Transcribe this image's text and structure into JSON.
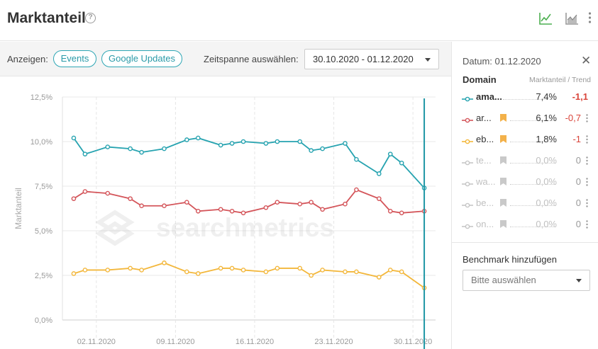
{
  "header": {
    "title": "Marktanteil",
    "help_glyph": "?",
    "icons": [
      "line-chart-icon",
      "area-chart-icon",
      "kebab-menu-icon"
    ]
  },
  "toolbar": {
    "show_label": "Anzeigen:",
    "events_label": "Events",
    "google_updates_label": "Google Updates",
    "timespan_label": "Zeitspanne auswählen:",
    "timespan_value": "30.10.2020 - 01.12.2020"
  },
  "colors": {
    "teal": "#26a3b0",
    "red": "#d4555a",
    "yellow": "#f3b73b",
    "gray": "#c6c6c6",
    "accent_green": "#4caf50",
    "bookmark": "#f3b14a"
  },
  "watermark": "searchmetrics",
  "panel": {
    "date_label": "Datum: 01.12.2020",
    "close_glyph": "✕",
    "domain_header": "Domain",
    "trend_header": "Marktanteil / Trend",
    "rows": [
      {
        "name": "ama...",
        "share": "7,4%",
        "trend": "-1,1",
        "color": "#26a3b0",
        "active": true,
        "bookmark": false,
        "bold": true
      },
      {
        "name": "ar...",
        "share": "6,1%",
        "trend": "-0,7",
        "color": "#d4555a",
        "active": true,
        "bookmark": true,
        "bold": false
      },
      {
        "name": "eb...",
        "share": "1,8%",
        "trend": "-1",
        "color": "#f3b73b",
        "active": true,
        "bookmark": true,
        "bold": false
      },
      {
        "name": "te...",
        "share": "0,0%",
        "trend": "0",
        "color": "#c6c6c6",
        "active": false,
        "bookmark": true,
        "bold": false
      },
      {
        "name": "wa...",
        "share": "0,0%",
        "trend": "0",
        "color": "#c6c6c6",
        "active": false,
        "bookmark": true,
        "bold": false
      },
      {
        "name": "be...",
        "share": "0,0%",
        "trend": "0",
        "color": "#c6c6c6",
        "active": false,
        "bookmark": true,
        "bold": false
      },
      {
        "name": "on...",
        "share": "0,0%",
        "trend": "0",
        "color": "#c6c6c6",
        "active": false,
        "bookmark": true,
        "bold": false
      }
    ],
    "benchmark_label": "Benchmark hinzufügen",
    "benchmark_placeholder": "Bitte auswählen"
  },
  "chart_data": {
    "type": "line",
    "ylabel": "Marktanteil",
    "ylim": [
      0,
      12.5
    ],
    "yticks": [
      0,
      2.5,
      5,
      7.5,
      10,
      12.5
    ],
    "ytick_labels": [
      "0,0%",
      "2,5%",
      "5,0%",
      "7,5%",
      "10,0%",
      "12,5%"
    ],
    "x": [
      "31.10.2020",
      "01.11.2020",
      "03.11.2020",
      "05.11.2020",
      "06.11.2020",
      "08.11.2020",
      "10.11.2020",
      "11.11.2020",
      "13.11.2020",
      "14.11.2020",
      "15.11.2020",
      "17.11.2020",
      "18.11.2020",
      "20.11.2020",
      "21.11.2020",
      "22.11.2020",
      "24.11.2020",
      "25.11.2020",
      "27.11.2020",
      "28.11.2020",
      "29.11.2020",
      "01.12.2020"
    ],
    "xtick_labels": [
      {
        "date": "02.11.2020",
        "label": "02.11.2020"
      },
      {
        "date": "09.11.2020",
        "label": "09.11.2020"
      },
      {
        "date": "16.11.2020",
        "label": "16.11.2020"
      },
      {
        "date": "23.11.2020",
        "label": "23.11.2020"
      },
      {
        "date": "30.11.2020",
        "label": "30.11.2020"
      }
    ],
    "xrange": [
      "30.10.2020",
      "02.12.2020"
    ],
    "grid": true,
    "series": [
      {
        "name": "ama...",
        "color": "#26a3b0",
        "values": [
          10.2,
          9.3,
          9.7,
          9.6,
          9.4,
          9.6,
          10.1,
          10.2,
          9.8,
          9.9,
          10.0,
          9.9,
          10.0,
          10.0,
          9.5,
          9.6,
          9.9,
          9.0,
          8.2,
          9.3,
          8.8,
          7.4
        ]
      },
      {
        "name": "ar...",
        "color": "#d4555a",
        "values": [
          6.8,
          7.2,
          7.1,
          6.8,
          6.4,
          6.4,
          6.6,
          6.1,
          6.2,
          6.1,
          6.0,
          6.3,
          6.6,
          6.5,
          6.6,
          6.2,
          6.5,
          7.3,
          6.8,
          6.1,
          6.0,
          6.1
        ]
      },
      {
        "name": "eb...",
        "color": "#f3b73b",
        "values": [
          2.6,
          2.8,
          2.8,
          2.9,
          2.8,
          3.2,
          2.7,
          2.6,
          2.9,
          2.9,
          2.8,
          2.7,
          2.9,
          2.9,
          2.5,
          2.8,
          2.7,
          2.7,
          2.4,
          2.8,
          2.7,
          1.8
        ]
      }
    ],
    "cursor_date": "01.12.2020"
  }
}
